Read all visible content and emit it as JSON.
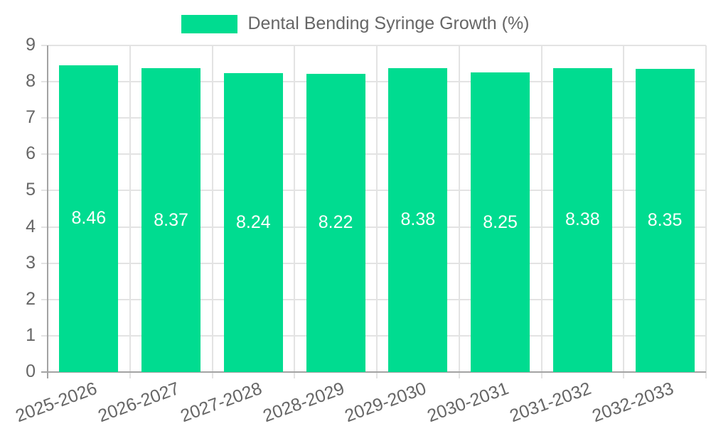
{
  "chart_data": {
    "type": "bar",
    "title": "Dental Bending Syringe Growth (%)",
    "legend_position": "top",
    "categories": [
      "2025-2026",
      "2026-2027",
      "2027-2028",
      "2028-2029",
      "2029-2030",
      "2030-2031",
      "2031-2032",
      "2032-2033"
    ],
    "values": [
      8.46,
      8.37,
      8.24,
      8.22,
      8.38,
      8.25,
      8.38,
      8.35
    ],
    "value_labels": [
      "8.46",
      "8.37",
      "8.24",
      "8.22",
      "8.38",
      "8.25",
      "8.38",
      "8.35"
    ],
    "xlabel": "",
    "ylabel": "",
    "ylim": [
      0,
      9
    ],
    "yticks": [
      0,
      1,
      2,
      3,
      4,
      5,
      6,
      7,
      8,
      9
    ],
    "grid": true,
    "x_label_rotation_deg": -20,
    "colors": {
      "bar": "#00DC90",
      "bar_label": "#FFFFFF",
      "axis_text": "#666666",
      "grid_line": "#E3E3E3",
      "axis_line": "#A3A3A3"
    }
  }
}
